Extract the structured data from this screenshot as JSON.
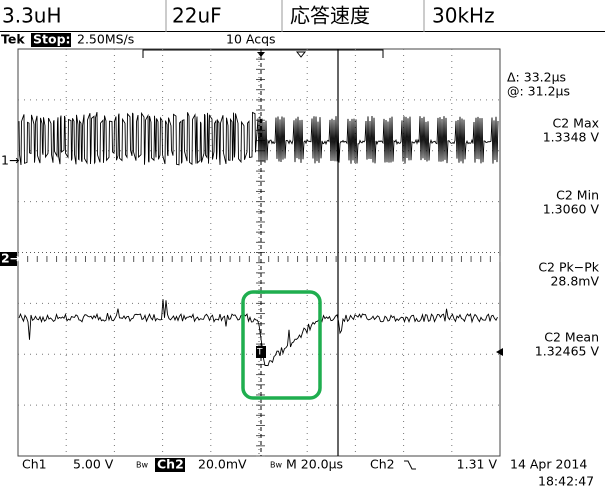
{
  "header": {
    "cells": [
      "3.3uH",
      "22uF",
      "応答速度",
      "30kHz"
    ]
  },
  "status": {
    "brand": "Tek",
    "state": "Stop:",
    "rate": "2.50MS/s",
    "acqs": "10 Acqs"
  },
  "markers": {
    "ch1": "1→",
    "ch2": "2→",
    "trigger": "T"
  },
  "readouts": {
    "delta": "Δ: 33.2μs",
    "at": "@: 31.2μs",
    "items": [
      {
        "label": "C2 Max",
        "value": "1.3348 V"
      },
      {
        "label": "C2 Min",
        "value": "1.3060 V"
      },
      {
        "label": "C2 Pk−Pk",
        "value": "28.8mV"
      },
      {
        "label": "C2 Mean",
        "value": "1.32465 V"
      }
    ]
  },
  "footer": {
    "ch1": "Ch1",
    "ch1_scale": "5.00 V",
    "ch2": "Ch2",
    "ch2_scale": "20.0mV",
    "time": "M 20.0μs",
    "trig_src": "Ch2",
    "trig_level": "1.31 V",
    "date": "14 Apr 2014",
    "clock": "18:42:47"
  }
}
